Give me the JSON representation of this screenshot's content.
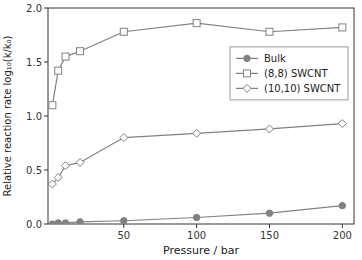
{
  "chart_data": {
    "type": "line",
    "x_label": "Pressure / bar",
    "y_label": "Relative reaction rate log₁₀(k/k₀)",
    "x": [
      1,
      5,
      10,
      20,
      50,
      100,
      150,
      200
    ],
    "series": [
      {
        "name": "Bulk",
        "color": "#808080",
        "marker": "circle",
        "values": [
          0.0,
          0.01,
          0.01,
          0.02,
          0.03,
          0.06,
          0.1,
          0.17
        ]
      },
      {
        "name": "(8,8) SWCNT",
        "color": "#808080",
        "marker": "square-open",
        "values": [
          1.1,
          1.42,
          1.55,
          1.6,
          1.78,
          1.86,
          1.78,
          1.82
        ]
      },
      {
        "name": "(10,10) SWCNT",
        "color": "#808080",
        "marker": "diamond-open",
        "values": [
          0.37,
          0.43,
          0.54,
          0.57,
          0.8,
          0.84,
          0.88,
          0.93
        ]
      }
    ],
    "xlim": [
      -2,
      208
    ],
    "ylim": [
      0.0,
      2.0
    ],
    "xticks": [
      50,
      100,
      150,
      200
    ],
    "yticks": [
      {
        "value": 0.0,
        "label": "0.0"
      },
      {
        "value": 0.5,
        "label": "0.5"
      },
      {
        "value": 1.0,
        "label": "1.0"
      },
      {
        "value": 1.5,
        "label": "1.5"
      },
      {
        "value": 2.0,
        "label": "2.0"
      }
    ],
    "grid": false,
    "legend": "right"
  }
}
